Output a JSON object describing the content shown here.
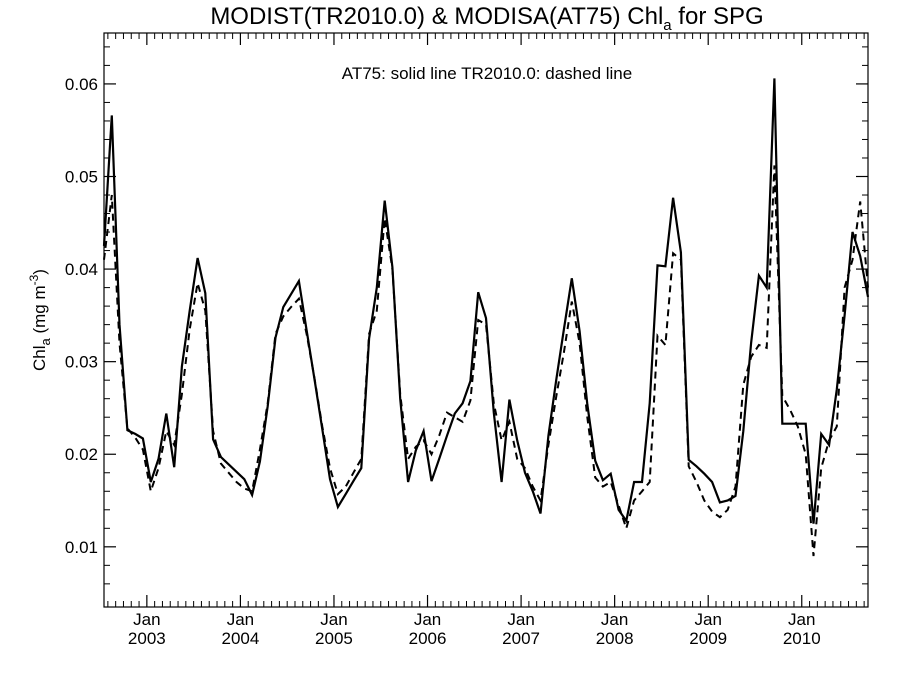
{
  "chart_data": {
    "type": "line",
    "title": {
      "main": "MODIST(TR2010.0) & MODISA(AT75)  Chl",
      "sub": "a",
      "tail": " for SPG"
    },
    "annotation": "AT75: solid line   TR2010.0: dashed line",
    "ylabel": {
      "main": "Chl",
      "sub": "a",
      "unit": " (mg m",
      "sup": "-3",
      "close": ")"
    },
    "xlabel": "",
    "ylim": [
      0.0035,
      0.0655
    ],
    "xlim": [
      2002.542,
      2010.708
    ],
    "yticks": [
      {
        "value": 0.01,
        "label": "0.01"
      },
      {
        "value": 0.02,
        "label": "0.02"
      },
      {
        "value": 0.03,
        "label": "0.03"
      },
      {
        "value": 0.04,
        "label": "0.04"
      },
      {
        "value": 0.05,
        "label": "0.05"
      },
      {
        "value": 0.06,
        "label": "0.06"
      }
    ],
    "xticks": [
      {
        "value": 2003.0,
        "month": "Jan",
        "year": "2003"
      },
      {
        "value": 2004.0,
        "month": "Jan",
        "year": "2004"
      },
      {
        "value": 2005.0,
        "month": "Jan",
        "year": "2005"
      },
      {
        "value": 2006.0,
        "month": "Jan",
        "year": "2006"
      },
      {
        "value": 2007.0,
        "month": "Jan",
        "year": "2007"
      },
      {
        "value": 2008.0,
        "month": "Jan",
        "year": "2008"
      },
      {
        "value": 2009.0,
        "month": "Jan",
        "year": "2009"
      },
      {
        "value": 2010.0,
        "month": "Jan",
        "year": "2010"
      }
    ],
    "grid": false,
    "series": [
      {
        "name": "AT75",
        "style": "solid",
        "color": "#000000",
        "points": [
          [
            2002.542,
            0.0425
          ],
          [
            2002.625,
            0.0566
          ],
          [
            2002.708,
            0.034
          ],
          [
            2002.792,
            0.0226
          ],
          [
            2002.875,
            0.0222
          ],
          [
            2002.958,
            0.0217
          ],
          [
            2003.042,
            0.017
          ],
          [
            2003.125,
            0.0195
          ],
          [
            2003.208,
            0.0244
          ],
          [
            2003.292,
            0.0186
          ],
          [
            2003.375,
            0.0295
          ],
          [
            2003.458,
            0.0355
          ],
          [
            2003.542,
            0.0412
          ],
          [
            2003.625,
            0.0374
          ],
          [
            2003.708,
            0.0216
          ],
          [
            2003.792,
            0.0197
          ],
          [
            2003.875,
            0.0189
          ],
          [
            2003.958,
            0.0181
          ],
          [
            2004.042,
            0.0173
          ],
          [
            2004.125,
            0.0156
          ],
          [
            2004.208,
            0.0192
          ],
          [
            2004.292,
            0.0252
          ],
          [
            2004.375,
            0.0326
          ],
          [
            2004.458,
            0.0359
          ],
          [
            2004.542,
            0.0373
          ],
          [
            2004.625,
            0.0387
          ],
          [
            2004.708,
            0.0334
          ],
          [
            2004.792,
            0.0281
          ],
          [
            2004.875,
            0.0227
          ],
          [
            2004.958,
            0.0173
          ],
          [
            2005.042,
            0.0143
          ],
          [
            2005.125,
            0.0157
          ],
          [
            2005.208,
            0.0171
          ],
          [
            2005.292,
            0.0185
          ],
          [
            2005.375,
            0.0325
          ],
          [
            2005.458,
            0.038
          ],
          [
            2005.542,
            0.0474
          ],
          [
            2005.625,
            0.0402
          ],
          [
            2005.708,
            0.026
          ],
          [
            2005.792,
            0.017
          ],
          [
            2005.875,
            0.0204
          ],
          [
            2005.958,
            0.0225
          ],
          [
            2006.042,
            0.0171
          ],
          [
            2006.125,
            0.0195
          ],
          [
            2006.208,
            0.022
          ],
          [
            2006.292,
            0.0244
          ],
          [
            2006.375,
            0.0255
          ],
          [
            2006.458,
            0.0279
          ],
          [
            2006.542,
            0.0375
          ],
          [
            2006.625,
            0.0347
          ],
          [
            2006.708,
            0.0245
          ],
          [
            2006.792,
            0.017
          ],
          [
            2006.875,
            0.0259
          ],
          [
            2006.958,
            0.0215
          ],
          [
            2007.042,
            0.018
          ],
          [
            2007.125,
            0.016
          ],
          [
            2007.208,
            0.0136
          ],
          [
            2007.292,
            0.022
          ],
          [
            2007.375,
            0.028
          ],
          [
            2007.458,
            0.0335
          ],
          [
            2007.542,
            0.039
          ],
          [
            2007.625,
            0.0333
          ],
          [
            2007.708,
            0.0254
          ],
          [
            2007.792,
            0.0193
          ],
          [
            2007.875,
            0.0172
          ],
          [
            2007.958,
            0.0179
          ],
          [
            2008.042,
            0.014
          ],
          [
            2008.125,
            0.0128
          ],
          [
            2008.208,
            0.017
          ],
          [
            2008.292,
            0.017
          ],
          [
            2008.375,
            0.0255
          ],
          [
            2008.458,
            0.0404
          ],
          [
            2008.542,
            0.0403
          ],
          [
            2008.625,
            0.0477
          ],
          [
            2008.708,
            0.0418
          ],
          [
            2008.792,
            0.0194
          ],
          [
            2008.875,
            0.0187
          ],
          [
            2008.958,
            0.0179
          ],
          [
            2009.042,
            0.017
          ],
          [
            2009.125,
            0.0148
          ],
          [
            2009.208,
            0.015
          ],
          [
            2009.292,
            0.0155
          ],
          [
            2009.375,
            0.0225
          ],
          [
            2009.458,
            0.032
          ],
          [
            2009.542,
            0.0393
          ],
          [
            2009.625,
            0.038
          ],
          [
            2009.708,
            0.0606
          ],
          [
            2009.792,
            0.0233
          ],
          [
            2009.875,
            0.0233
          ],
          [
            2009.958,
            0.0233
          ],
          [
            2010.042,
            0.0233
          ],
          [
            2010.125,
            0.0125
          ],
          [
            2010.208,
            0.0222
          ],
          [
            2010.292,
            0.021
          ],
          [
            2010.375,
            0.027
          ],
          [
            2010.458,
            0.035
          ],
          [
            2010.542,
            0.044
          ],
          [
            2010.625,
            0.0414
          ],
          [
            2010.708,
            0.037
          ]
        ]
      },
      {
        "name": "TR2010.0",
        "style": "dashed",
        "color": "#000000",
        "points": [
          [
            2002.542,
            0.041
          ],
          [
            2002.625,
            0.048
          ],
          [
            2002.708,
            0.032
          ],
          [
            2002.792,
            0.0228
          ],
          [
            2002.875,
            0.0218
          ],
          [
            2002.958,
            0.0205
          ],
          [
            2003.042,
            0.016
          ],
          [
            2003.125,
            0.0185
          ],
          [
            2003.208,
            0.0225
          ],
          [
            2003.292,
            0.021
          ],
          [
            2003.375,
            0.0265
          ],
          [
            2003.458,
            0.0335
          ],
          [
            2003.542,
            0.0385
          ],
          [
            2003.625,
            0.0355
          ],
          [
            2003.708,
            0.0225
          ],
          [
            2003.792,
            0.019
          ],
          [
            2003.875,
            0.018
          ],
          [
            2003.958,
            0.017
          ],
          [
            2004.042,
            0.0163
          ],
          [
            2004.125,
            0.016
          ],
          [
            2004.208,
            0.0205
          ],
          [
            2004.292,
            0.0255
          ],
          [
            2004.375,
            0.033
          ],
          [
            2004.458,
            0.0349
          ],
          [
            2004.542,
            0.0359
          ],
          [
            2004.625,
            0.0368
          ],
          [
            2004.708,
            0.033
          ],
          [
            2004.792,
            0.0282
          ],
          [
            2004.875,
            0.023
          ],
          [
            2004.958,
            0.0185
          ],
          [
            2005.042,
            0.0157
          ],
          [
            2005.125,
            0.0165
          ],
          [
            2005.208,
            0.018
          ],
          [
            2005.292,
            0.0195
          ],
          [
            2005.375,
            0.033
          ],
          [
            2005.458,
            0.0355
          ],
          [
            2005.542,
            0.0455
          ],
          [
            2005.625,
            0.04
          ],
          [
            2005.708,
            0.0265
          ],
          [
            2005.792,
            0.0195
          ],
          [
            2005.875,
            0.0208
          ],
          [
            2005.958,
            0.0215
          ],
          [
            2006.042,
            0.02
          ],
          [
            2006.125,
            0.022
          ],
          [
            2006.208,
            0.0245
          ],
          [
            2006.292,
            0.024
          ],
          [
            2006.375,
            0.0235
          ],
          [
            2006.458,
            0.0258
          ],
          [
            2006.542,
            0.0345
          ],
          [
            2006.625,
            0.034
          ],
          [
            2006.708,
            0.0255
          ],
          [
            2006.792,
            0.0215
          ],
          [
            2006.875,
            0.0235
          ],
          [
            2006.958,
            0.0195
          ],
          [
            2007.042,
            0.0185
          ],
          [
            2007.125,
            0.0165
          ],
          [
            2007.208,
            0.015
          ],
          [
            2007.292,
            0.021
          ],
          [
            2007.375,
            0.0262
          ],
          [
            2007.458,
            0.031
          ],
          [
            2007.542,
            0.0365
          ],
          [
            2007.625,
            0.032
          ],
          [
            2007.708,
            0.024
          ],
          [
            2007.792,
            0.0175
          ],
          [
            2007.875,
            0.0165
          ],
          [
            2007.958,
            0.017
          ],
          [
            2008.042,
            0.0145
          ],
          [
            2008.125,
            0.012
          ],
          [
            2008.208,
            0.015
          ],
          [
            2008.292,
            0.016
          ],
          [
            2008.375,
            0.017
          ],
          [
            2008.458,
            0.0328
          ],
          [
            2008.542,
            0.0318
          ],
          [
            2008.625,
            0.0417
          ],
          [
            2008.708,
            0.041
          ],
          [
            2008.792,
            0.0187
          ],
          [
            2008.875,
            0.017
          ],
          [
            2008.958,
            0.015
          ],
          [
            2009.042,
            0.0138
          ],
          [
            2009.125,
            0.0132
          ],
          [
            2009.208,
            0.014
          ],
          [
            2009.292,
            0.0165
          ],
          [
            2009.375,
            0.0275
          ],
          [
            2009.458,
            0.0305
          ],
          [
            2009.542,
            0.0318
          ],
          [
            2009.625,
            0.0315
          ],
          [
            2009.708,
            0.0512
          ],
          [
            2009.792,
            0.0263
          ],
          [
            2009.875,
            0.0248
          ],
          [
            2009.958,
            0.023
          ],
          [
            2010.042,
            0.02
          ],
          [
            2010.125,
            0.009
          ],
          [
            2010.208,
            0.0185
          ],
          [
            2010.292,
            0.0215
          ],
          [
            2010.375,
            0.023
          ],
          [
            2010.458,
            0.038
          ],
          [
            2010.542,
            0.041
          ],
          [
            2010.625,
            0.0473
          ],
          [
            2010.708,
            0.038
          ]
        ]
      }
    ]
  }
}
